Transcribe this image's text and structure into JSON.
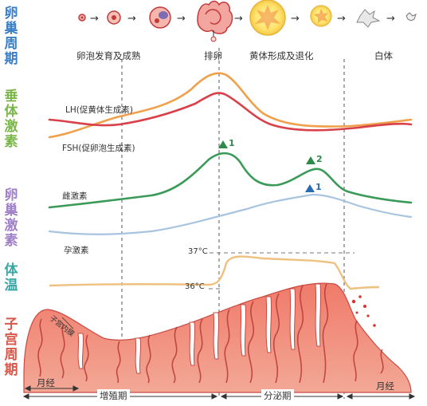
{
  "side_labels": {
    "ovary_cycle": "卵巢周期",
    "pituitary_hormone": "垂体激素",
    "ovarian_hormone": "卵巢激素",
    "body_temp": "体温",
    "uterine_cycle": "子宫周期"
  },
  "ovary_stages": [
    "卵泡发育及成熟",
    "排卵",
    "黄体形成及退化",
    "白体"
  ],
  "hormone_labels": {
    "lh": "LH(促黄体生成素)",
    "fsh": "FSH(促卵泡生成素)",
    "estrogen": "雌激素",
    "progesterone": "孕激素"
  },
  "peak_marks": {
    "estrogen_peak_1": "1",
    "estrogen_peak_2": "2",
    "progesterone_peak_1": "1"
  },
  "temperature": {
    "high": "37°C",
    "low": "36°C"
  },
  "uterus": {
    "inner_label": "子宫内膜"
  },
  "phases": {
    "menstrual_left": "月经",
    "proliferative": "增殖期",
    "secretory": "分泌期",
    "menstrual_right": "月经"
  },
  "colors": {
    "lh": "#f0a04a",
    "fsh": "#d8404a",
    "estrogen": "#3a9a58",
    "progesterone": "#a8c4de",
    "temperature": "#f0c080",
    "endometrium": "#e87a6a",
    "peak_green": "#2e8a4a",
    "peak_blue": "#2a6ab0"
  }
}
